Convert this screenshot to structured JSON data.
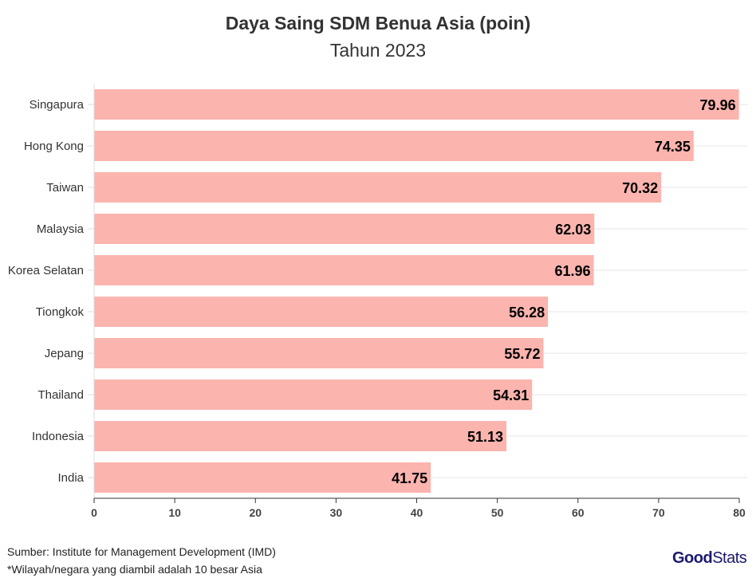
{
  "chart_data": {
    "type": "bar",
    "orientation": "horizontal",
    "title": "Daya Saing SDM Benua Asia (poin)",
    "subtitle": "Tahun 2023",
    "categories": [
      "Singapura",
      "Hong Kong",
      "Taiwan",
      "Malaysia",
      "Korea Selatan",
      "Tiongkok",
      "Jepang",
      "Thailand",
      "Indonesia",
      "India"
    ],
    "values": [
      79.96,
      74.35,
      70.32,
      62.03,
      61.96,
      56.28,
      55.72,
      54.31,
      51.13,
      41.75
    ],
    "value_labels": [
      "79.96",
      "74.35",
      "70.32",
      "62.03",
      "61.96",
      "56.28",
      "55.72",
      "54.31",
      "51.13",
      "41.75"
    ],
    "xlim": [
      0,
      80
    ],
    "x_ticks": [
      "0",
      "10",
      "20",
      "30",
      "40",
      "50",
      "60",
      "70",
      "80"
    ],
    "grid": true,
    "bar_color": "#fbb4ae"
  },
  "footer": {
    "source": "Sumber: Institute for Management Development (IMD)",
    "note": "*Wilayah/negara yang diambil adalah 10 besar Asia"
  },
  "logo": {
    "text_bold": "Good",
    "text_regular": "Stats",
    "color": "#1c1a6e"
  }
}
